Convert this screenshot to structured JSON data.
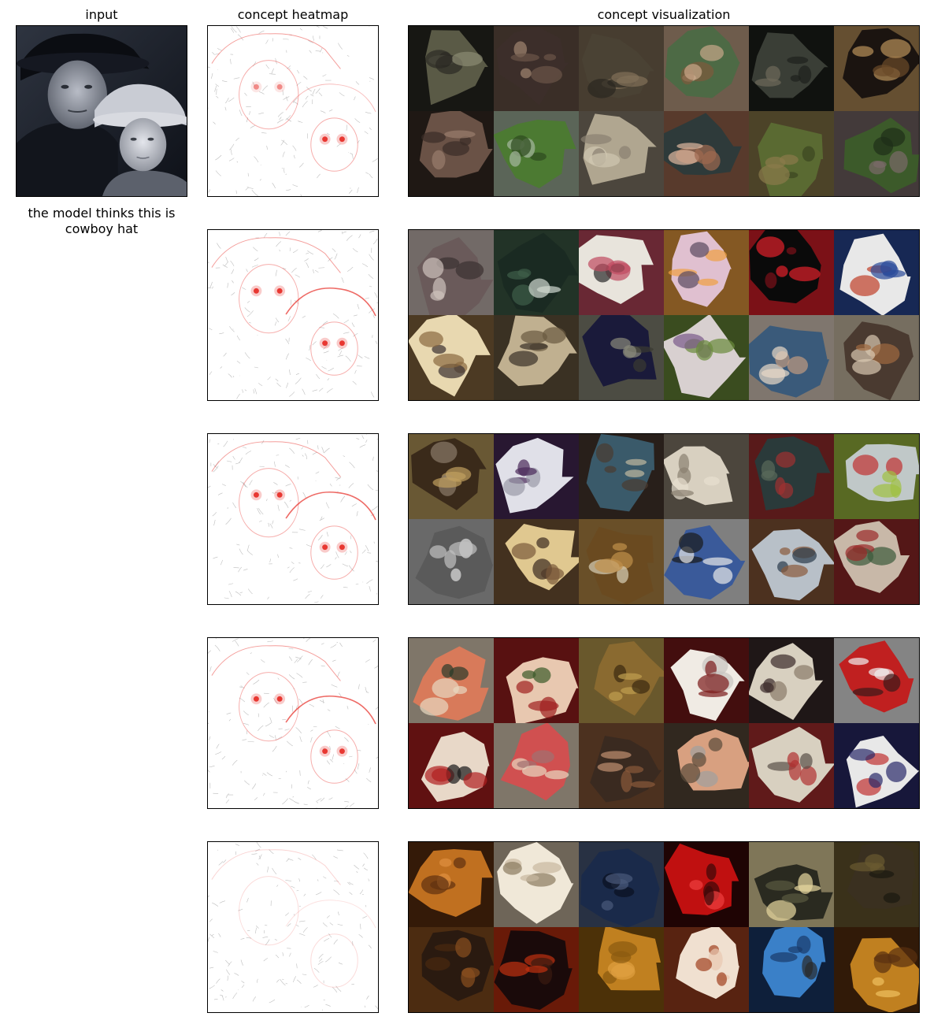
{
  "headers": {
    "input": "input",
    "heatmap": "concept heatmap",
    "visualization": "concept visualization"
  },
  "caption": "the model thinks this is cowboy hat",
  "input_image": {
    "depicts": "grayscale photo of a man and a young boy wearing cowboy hats"
  },
  "heatmap_colors": {
    "edge": "#bdbdbd",
    "highlight": "#e8302a"
  },
  "concepts": [
    {
      "heatmap_focus": [
        "eyes"
      ],
      "tiles": [
        {
          "depicts": "water buffalo",
          "colors": [
            "#5a5a46",
            "#2b2a24",
            "#8a8a72"
          ]
        },
        {
          "depicts": "curved horn",
          "colors": [
            "#3c2e2a",
            "#6b5548",
            "#a08670"
          ]
        },
        {
          "depicts": "buffalo head close-up",
          "colors": [
            "#4a4234",
            "#827058",
            "#2a2620"
          ]
        },
        {
          "depicts": "woman wearing cowboy hat",
          "colors": [
            "#4d6a45",
            "#c8a88a",
            "#7d5a3c"
          ]
        },
        {
          "depicts": "water buffalo",
          "colors": [
            "#3a3e36",
            "#1e211d",
            "#6e6a5a"
          ]
        },
        {
          "depicts": "curled horn",
          "colors": [
            "#1b1410",
            "#b8905a",
            "#6b4a2a"
          ]
        },
        {
          "depicts": "elephant trunk",
          "colors": [
            "#6a5246",
            "#3a2c26",
            "#9a7e6c"
          ]
        },
        {
          "depicts": "elephant on grass",
          "colors": [
            "#4c7a32",
            "#a6b8a0",
            "#2e4a1e"
          ]
        },
        {
          "depicts": "elephant eye close-up",
          "colors": [
            "#b0a690",
            "#8a8070",
            "#d0c8b0"
          ]
        },
        {
          "depicts": "smiling woman in hat",
          "colors": [
            "#2e3a3a",
            "#a06a50",
            "#e0b8a0"
          ]
        },
        {
          "depicts": "elephant with tusk",
          "colors": [
            "#5a6a32",
            "#8a7a4a",
            "#3a4620"
          ]
        },
        {
          "depicts": "young elephant",
          "colors": [
            "#3c5a2a",
            "#7a6a6a",
            "#1e2e18"
          ]
        }
      ]
    },
    {
      "heatmap_focus": [
        "eyes",
        "hat brim"
      ],
      "tiles": [
        {
          "depicts": "sunglasses",
          "colors": [
            "#6a5a5a",
            "#cfc2bc",
            "#3a3030"
          ]
        },
        {
          "depicts": "green hat",
          "colors": [
            "#1a2a22",
            "#3e5e48",
            "#d0d8d0"
          ]
        },
        {
          "depicts": "floral teapot",
          "colors": [
            "#e8e4dc",
            "#c04a60",
            "#2a2a2a"
          ]
        },
        {
          "depicts": "butterfly bib",
          "colors": [
            "#e0c0d0",
            "#f0a040",
            "#5a4a60"
          ]
        },
        {
          "depicts": "red sunglasses",
          "colors": [
            "#0a0a0a",
            "#e0202a",
            "#7a1018"
          ]
        },
        {
          "depicts": "blue and white pattern",
          "colors": [
            "#e8e8e8",
            "#2a4a9a",
            "#c0402a"
          ]
        },
        {
          "depicts": "shoe",
          "colors": [
            "#e8d8b0",
            "#8a6a40",
            "#3a3030"
          ]
        },
        {
          "depicts": "textured fabric",
          "colors": [
            "#c0b090",
            "#6a5a40",
            "#3a3228"
          ]
        },
        {
          "depicts": "dark curved surface",
          "colors": [
            "#1a1a3a",
            "#8a8a7a",
            "#3a3a30"
          ]
        },
        {
          "depicts": "teacup",
          "colors": [
            "#d8d0d0",
            "#6a8a3a",
            "#7a5a8a"
          ]
        },
        {
          "depicts": "child with sunglasses",
          "colors": [
            "#3a5a7a",
            "#e8d8c8",
            "#c09a80"
          ]
        },
        {
          "depicts": "person at table",
          "colors": [
            "#4a3a30",
            "#d8c8b0",
            "#a06a40"
          ]
        }
      ]
    },
    {
      "heatmap_focus": [
        "eyes",
        "hat outline"
      ],
      "tiles": [
        {
          "depicts": "shoe detail",
          "colors": [
            "#3a2a1a",
            "#c0a060",
            "#8a7a6a"
          ]
        },
        {
          "depicts": "sneaker",
          "colors": [
            "#e0e0e8",
            "#4a2a5a",
            "#9a9aa8"
          ]
        },
        {
          "depicts": "sandal on beach",
          "colors": [
            "#3a5a6a",
            "#4a3a30",
            "#c0b8a0"
          ]
        },
        {
          "depicts": "boot",
          "colors": [
            "#d8d0c0",
            "#8a8070",
            "#e8e0d0"
          ]
        },
        {
          "depicts": "totem carving",
          "colors": [
            "#2a3a3a",
            "#a03030",
            "#5a6a5a"
          ]
        },
        {
          "depicts": "running shoe",
          "colors": [
            "#c0c8c8",
            "#a0c040",
            "#c03030"
          ]
        },
        {
          "depicts": "shoe sole",
          "colors": [
            "#5a5a5a",
            "#c0c0c0",
            "#e0e0e0"
          ]
        },
        {
          "depicts": "wooden shoes",
          "colors": [
            "#e0c890",
            "#7a5a3a",
            "#3a2a20"
          ]
        },
        {
          "depicts": "leather sandal",
          "colors": [
            "#6a4a20",
            "#c0904a",
            "#d8d0b8"
          ]
        },
        {
          "depicts": "space shuttle",
          "colors": [
            "#3a5a9a",
            "#e8e8e8",
            "#1a1a1a"
          ]
        },
        {
          "depicts": "rusty ship",
          "colors": [
            "#b8c0c8",
            "#8a5a3a",
            "#2a3a4a"
          ]
        },
        {
          "depicts": "totem face",
          "colors": [
            "#c8b8a8",
            "#9a2a2a",
            "#3a5a3a"
          ]
        }
      ]
    },
    {
      "heatmap_focus": [
        "eyes",
        "hat outline"
      ],
      "tiles": [
        {
          "depicts": "mushroom",
          "colors": [
            "#d87a5a",
            "#e8d8c0",
            "#2a3a2a"
          ]
        },
        {
          "depicts": "baseball",
          "colors": [
            "#e8c8b0",
            "#a02020",
            "#3a5a2a"
          ]
        },
        {
          "depicts": "crab",
          "colors": [
            "#8a6a30",
            "#c0a050",
            "#3a2a10"
          ]
        },
        {
          "depicts": "baseball stitching",
          "colors": [
            "#f0ebe4",
            "#7a1a1a",
            "#c8c4c0"
          ]
        },
        {
          "depicts": "worn baseball",
          "colors": [
            "#d8d0c0",
            "#3a2a2a",
            "#8a7a6a"
          ]
        },
        {
          "depicts": "red mushroom cap",
          "colors": [
            "#c02020",
            "#f0f0f0",
            "#3a1a1a"
          ]
        },
        {
          "depicts": "baseball with lettering",
          "colors": [
            "#e8d8c8",
            "#b02020",
            "#1a1a1a"
          ]
        },
        {
          "depicts": "mushroom in hand",
          "colors": [
            "#d05050",
            "#e8d8c0",
            "#a07070"
          ]
        },
        {
          "depicts": "crab on sand",
          "colors": [
            "#3a2a20",
            "#8a5a3a",
            "#c09070"
          ]
        },
        {
          "depicts": "hands holding object",
          "colors": [
            "#d8a080",
            "#5a4a3a",
            "#a0a0a0"
          ]
        },
        {
          "depicts": "baseball",
          "colors": [
            "#d8d0c0",
            "#b03030",
            "#5a5048"
          ]
        },
        {
          "depicts": "baseball with logo",
          "colors": [
            "#e8e8e8",
            "#2a2a6a",
            "#c03030"
          ]
        }
      ]
    },
    {
      "heatmap_focus": [
        "faint edges"
      ],
      "tiles": [
        {
          "depicts": "orange scales",
          "colors": [
            "#c07020",
            "#603010",
            "#e09040"
          ]
        },
        {
          "depicts": "honeycomb pattern",
          "colors": [
            "#f0e8d8",
            "#c8b8a0",
            "#8a7a60"
          ]
        },
        {
          "depicts": "tree branches",
          "colors": [
            "#1a2a4a",
            "#4a5a7a",
            "#0a1020"
          ]
        },
        {
          "depicts": "red grid",
          "colors": [
            "#c01010",
            "#3a0808",
            "#f04040"
          ]
        },
        {
          "depicts": "wire mesh fence",
          "colors": [
            "#2a2a20",
            "#e8d8a0",
            "#5a5a40"
          ]
        },
        {
          "depicts": "dark textured surface",
          "colors": [
            "#3a3020",
            "#6a5a30",
            "#1a1810"
          ]
        },
        {
          "depicts": "dark orange texture",
          "colors": [
            "#2a1a10",
            "#8a5020",
            "#4a2a10"
          ]
        },
        {
          "depicts": "red dotted mesh",
          "colors": [
            "#1a0a0a",
            "#c03010",
            "#3a1a10"
          ]
        },
        {
          "depicts": "geometric ceiling",
          "colors": [
            "#c08020",
            "#8a5a10",
            "#e0a040"
          ]
        },
        {
          "depicts": "honeycomb cells",
          "colors": [
            "#f0e0d0",
            "#a04020",
            "#e8c8b0"
          ]
        },
        {
          "depicts": "blue water",
          "colors": [
            "#3a80c8",
            "#1a3a6a",
            "#2a2a2a"
          ]
        },
        {
          "depicts": "orange lattice",
          "colors": [
            "#c08020",
            "#5a3010",
            "#f0c060"
          ]
        }
      ]
    }
  ]
}
